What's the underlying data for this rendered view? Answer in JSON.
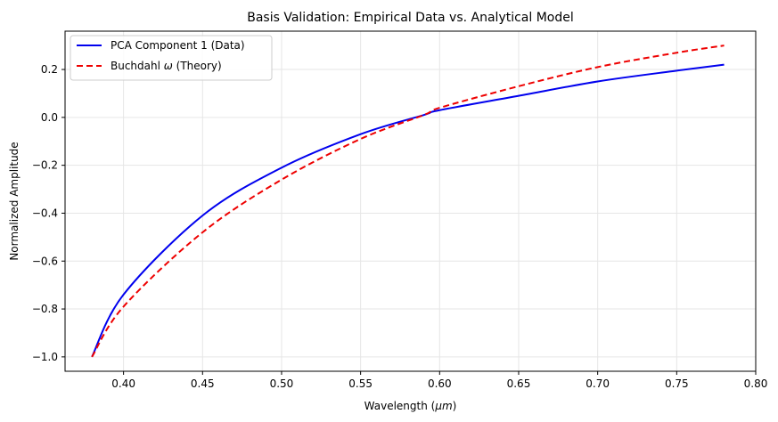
{
  "chart_data": {
    "type": "line",
    "title": "Basis Validation: Empirical Data vs. Analytical Model",
    "xlabel_main": "Wavelength (",
    "xlabel_unit": "μm",
    "xlabel_tail": ")",
    "ylabel": "Normalized Amplitude",
    "xlim": [
      0.363,
      0.8
    ],
    "ylim": [
      -1.06,
      0.36
    ],
    "xticks": [
      0.4,
      0.45,
      0.5,
      0.55,
      0.6,
      0.65,
      0.7,
      0.75,
      0.8
    ],
    "xtick_labels": [
      "0.40",
      "0.45",
      "0.50",
      "0.55",
      "0.60",
      "0.65",
      "0.70",
      "0.75",
      "0.80"
    ],
    "yticks": [
      -1.0,
      -0.8,
      -0.6,
      -0.4,
      -0.2,
      0.0,
      0.2
    ],
    "ytick_labels": [
      "−1.0",
      "−0.8",
      "−0.6",
      "−0.4",
      "−0.2",
      "0.0",
      "0.2"
    ],
    "grid": true,
    "legend_position": "top-left",
    "series": [
      {
        "name": "PCA Component 1 (Data)",
        "color": "#0000ee",
        "style": "solid",
        "x": [
          0.38,
          0.4,
          0.45,
          0.5,
          0.55,
          0.59,
          0.6,
          0.65,
          0.7,
          0.75,
          0.78
        ],
        "y": [
          -1.0,
          -0.74,
          -0.41,
          -0.21,
          -0.07,
          0.01,
          0.03,
          0.09,
          0.15,
          0.195,
          0.22
        ]
      },
      {
        "name_main": "Buchdahl ",
        "name_symbol": "ω",
        "name_tail": " (Theory)",
        "color": "#ee0000",
        "style": "dashed",
        "x": [
          0.38,
          0.4,
          0.45,
          0.5,
          0.55,
          0.59,
          0.6,
          0.65,
          0.7,
          0.75,
          0.78
        ],
        "y": [
          -1.0,
          -0.79,
          -0.48,
          -0.26,
          -0.09,
          0.01,
          0.04,
          0.13,
          0.21,
          0.27,
          0.3
        ]
      }
    ]
  }
}
